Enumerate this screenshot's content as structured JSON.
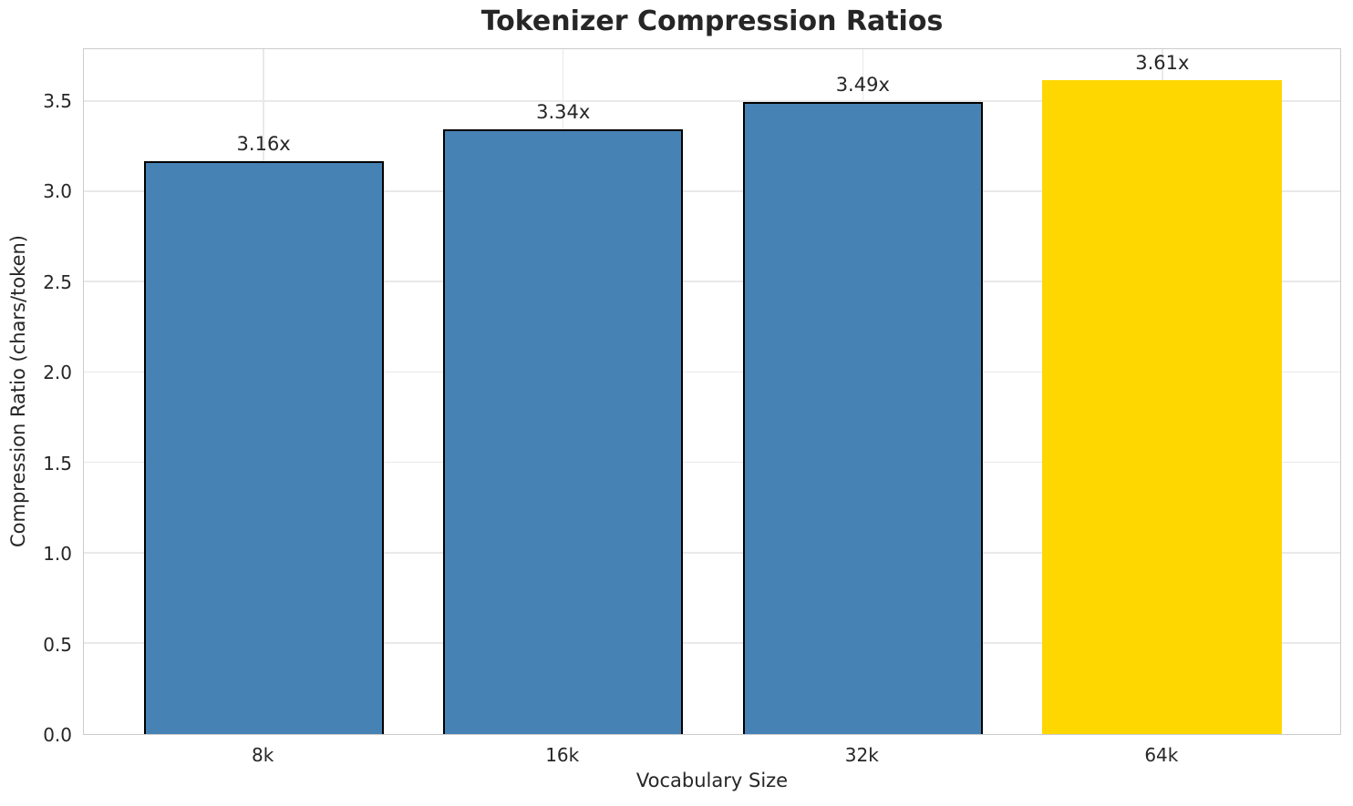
{
  "chart_data": {
    "type": "bar",
    "title": "Tokenizer Compression Ratios",
    "xlabel": "Vocabulary Size",
    "ylabel": "Compression Ratio (chars/token)",
    "categories": [
      "8k",
      "16k",
      "32k",
      "64k"
    ],
    "values": [
      3.16,
      3.34,
      3.49,
      3.61
    ],
    "value_labels": [
      "3.16x",
      "3.34x",
      "3.49x",
      "3.61x"
    ],
    "bar_colors": [
      "#4682B4",
      "#4682B4",
      "#4682B4",
      "#FFD700"
    ],
    "bar_edge_colors": [
      "#000000",
      "#000000",
      "#000000",
      "none"
    ],
    "ylim": [
      0,
      3.79
    ],
    "yticks": [
      0.0,
      0.5,
      1.0,
      1.5,
      2.0,
      2.5,
      3.0,
      3.5
    ],
    "ytick_labels": [
      "0.0",
      "0.5",
      "1.0",
      "1.5",
      "2.0",
      "2.5",
      "3.0",
      "3.5"
    ],
    "xlim": [
      -0.6,
      3.6
    ],
    "bar_width_data_units": 0.8,
    "grid": true,
    "legend": "none",
    "colors": {
      "bar_default": "#4682B4",
      "bar_highlight": "#FFD700",
      "bar_edge": "#000000",
      "grid": "#e9e9e9",
      "spine": "#cccccc",
      "text": "#262626",
      "background": "#ffffff"
    }
  }
}
